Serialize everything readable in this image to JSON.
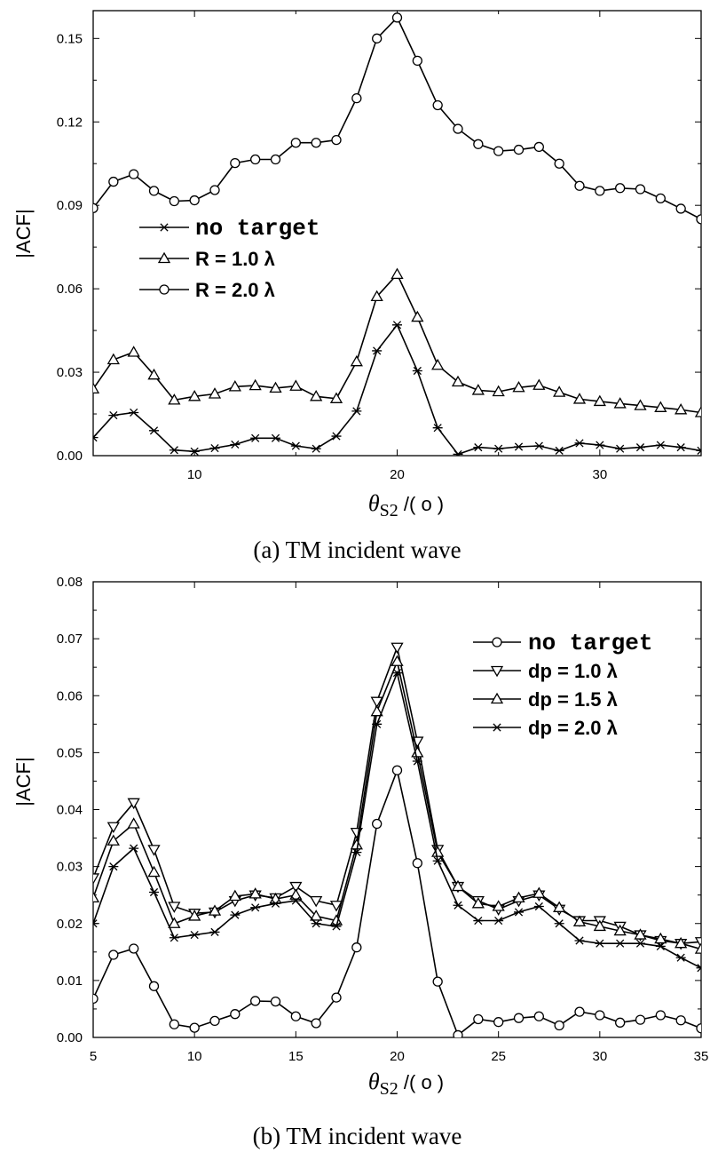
{
  "chart_data": [
    {
      "type": "line",
      "caption": "(a) TM incident wave",
      "ylabel": "|ACF|",
      "xlabel": "θS2 /( o )",
      "xlabel_parts": {
        "theta": "θ",
        "sub": "S2",
        "unit": " /( o )"
      },
      "xlim": [
        5,
        35
      ],
      "ylim": [
        0.0,
        0.16
      ],
      "xticks": [
        10,
        20,
        30
      ],
      "xtick_labels": [
        "10",
        "20",
        "30"
      ],
      "yticks": [
        0.0,
        0.03,
        0.06,
        0.09,
        0.12,
        0.15
      ],
      "ytick_labels": [
        "0.00",
        "0.03",
        "0.06",
        "0.09",
        "0.12",
        "0.15"
      ],
      "legend_position": "middle-left",
      "x": [
        5,
        6,
        7,
        8,
        9,
        10,
        11,
        12,
        13,
        14,
        15,
        16,
        17,
        18,
        19,
        20,
        21,
        22,
        23,
        24,
        25,
        26,
        27,
        28,
        29,
        30,
        31,
        32,
        33,
        34,
        35
      ],
      "series": [
        {
          "name": "no target",
          "marker": "star",
          "legend_style": "mono",
          "values": [
            0.0065,
            0.0145,
            0.0155,
            0.009,
            0.002,
            0.0015,
            0.0027,
            0.004,
            0.0063,
            0.0063,
            0.0035,
            0.0025,
            0.007,
            0.016,
            0.0377,
            0.047,
            0.0305,
            0.01,
            0.0005,
            0.003,
            0.0025,
            0.0032,
            0.0035,
            0.0018,
            0.0045,
            0.0038,
            0.0025,
            0.003,
            0.0038,
            0.003,
            0.0018
          ]
        },
        {
          "name": "R = 1.0 λ",
          "marker": "triangle-up",
          "legend_style": "bold",
          "values": [
            0.024,
            0.0345,
            0.0372,
            0.029,
            0.02,
            0.0213,
            0.0222,
            0.0248,
            0.0252,
            0.0243,
            0.025,
            0.0213,
            0.0205,
            0.0338,
            0.0572,
            0.0652,
            0.0498,
            0.0325,
            0.0265,
            0.0235,
            0.023,
            0.0245,
            0.0253,
            0.0228,
            0.0203,
            0.0195,
            0.0187,
            0.018,
            0.0173,
            0.0165,
            0.0155
          ]
        },
        {
          "name": "R = 2.0 λ",
          "marker": "circle",
          "legend_style": "bold",
          "values": [
            0.089,
            0.0985,
            0.1012,
            0.0952,
            0.0915,
            0.0918,
            0.0955,
            0.1052,
            0.1065,
            0.1065,
            0.1125,
            0.1125,
            0.1135,
            0.1285,
            0.15,
            0.1575,
            0.142,
            0.126,
            0.1175,
            0.112,
            0.1095,
            0.11,
            0.111,
            0.105,
            0.097,
            0.0952,
            0.0962,
            0.0958,
            0.0925,
            0.0888,
            0.085
          ]
        }
      ]
    },
    {
      "type": "line",
      "caption": "(b) TM incident wave",
      "ylabel": "|ACF|",
      "xlabel": "θS2 /( o )",
      "xlabel_parts": {
        "theta": "θ",
        "sub": "S2",
        "unit": " /( o )"
      },
      "xlim": [
        5,
        35
      ],
      "ylim": [
        0.0,
        0.08
      ],
      "xticks": [
        5,
        10,
        15,
        20,
        25,
        30,
        35
      ],
      "xtick_labels": [
        "5",
        "10",
        "15",
        "20",
        "25",
        "30",
        "35"
      ],
      "yticks": [
        0.0,
        0.01,
        0.02,
        0.03,
        0.04,
        0.05,
        0.06,
        0.07,
        0.08
      ],
      "ytick_labels": [
        "0.00",
        "0.01",
        "0.02",
        "0.03",
        "0.04",
        "0.05",
        "0.06",
        "0.07",
        "0.08"
      ],
      "legend_position": "top-right",
      "x": [
        5,
        6,
        7,
        8,
        9,
        10,
        11,
        12,
        13,
        14,
        15,
        16,
        17,
        18,
        19,
        20,
        21,
        22,
        23,
        24,
        25,
        26,
        27,
        28,
        29,
        30,
        31,
        32,
        33,
        34,
        35
      ],
      "series": [
        {
          "name": "no target",
          "marker": "circle",
          "legend_style": "mono",
          "values": [
            0.0068,
            0.0145,
            0.0156,
            0.009,
            0.0023,
            0.0017,
            0.0029,
            0.0041,
            0.0064,
            0.0063,
            0.0037,
            0.0025,
            0.007,
            0.0158,
            0.0375,
            0.0469,
            0.0306,
            0.0098,
            0.0004,
            0.0032,
            0.0027,
            0.0034,
            0.0037,
            0.0021,
            0.0045,
            0.0039,
            0.0026,
            0.0031,
            0.0039,
            0.003,
            0.0016
          ]
        },
        {
          "name": "dp = 1.0 λ",
          "marker": "triangle-down",
          "legend_style": "bold",
          "values": [
            0.028,
            0.037,
            0.0412,
            0.033,
            0.023,
            0.0218,
            0.022,
            0.024,
            0.025,
            0.0245,
            0.0265,
            0.024,
            0.0232,
            0.036,
            0.059,
            0.0685,
            0.052,
            0.033,
            0.0265,
            0.024,
            0.0225,
            0.024,
            0.025,
            0.0225,
            0.0205,
            0.0205,
            0.0195,
            0.018,
            0.017,
            0.0165,
            0.0168
          ]
        },
        {
          "name": "dp = 1.5 λ",
          "marker": "triangle-up",
          "legend_style": "bold",
          "values": [
            0.0245,
            0.0345,
            0.0375,
            0.029,
            0.02,
            0.0213,
            0.0222,
            0.0248,
            0.0252,
            0.0243,
            0.025,
            0.0213,
            0.0205,
            0.0338,
            0.0572,
            0.066,
            0.05,
            0.0325,
            0.0265,
            0.0235,
            0.023,
            0.0245,
            0.0253,
            0.0228,
            0.0203,
            0.0195,
            0.0187,
            0.018,
            0.0173,
            0.0165,
            0.0155
          ]
        },
        {
          "name": "dp = 2.0 λ",
          "marker": "star",
          "legend_style": "bold",
          "values": [
            0.02,
            0.03,
            0.0332,
            0.0255,
            0.0175,
            0.018,
            0.0185,
            0.0215,
            0.0228,
            0.0235,
            0.024,
            0.02,
            0.0195,
            0.0325,
            0.055,
            0.064,
            0.0485,
            0.031,
            0.0232,
            0.0205,
            0.0205,
            0.022,
            0.023,
            0.02,
            0.017,
            0.0165,
            0.0165,
            0.0165,
            0.016,
            0.014,
            0.0122
          ]
        }
      ]
    }
  ]
}
